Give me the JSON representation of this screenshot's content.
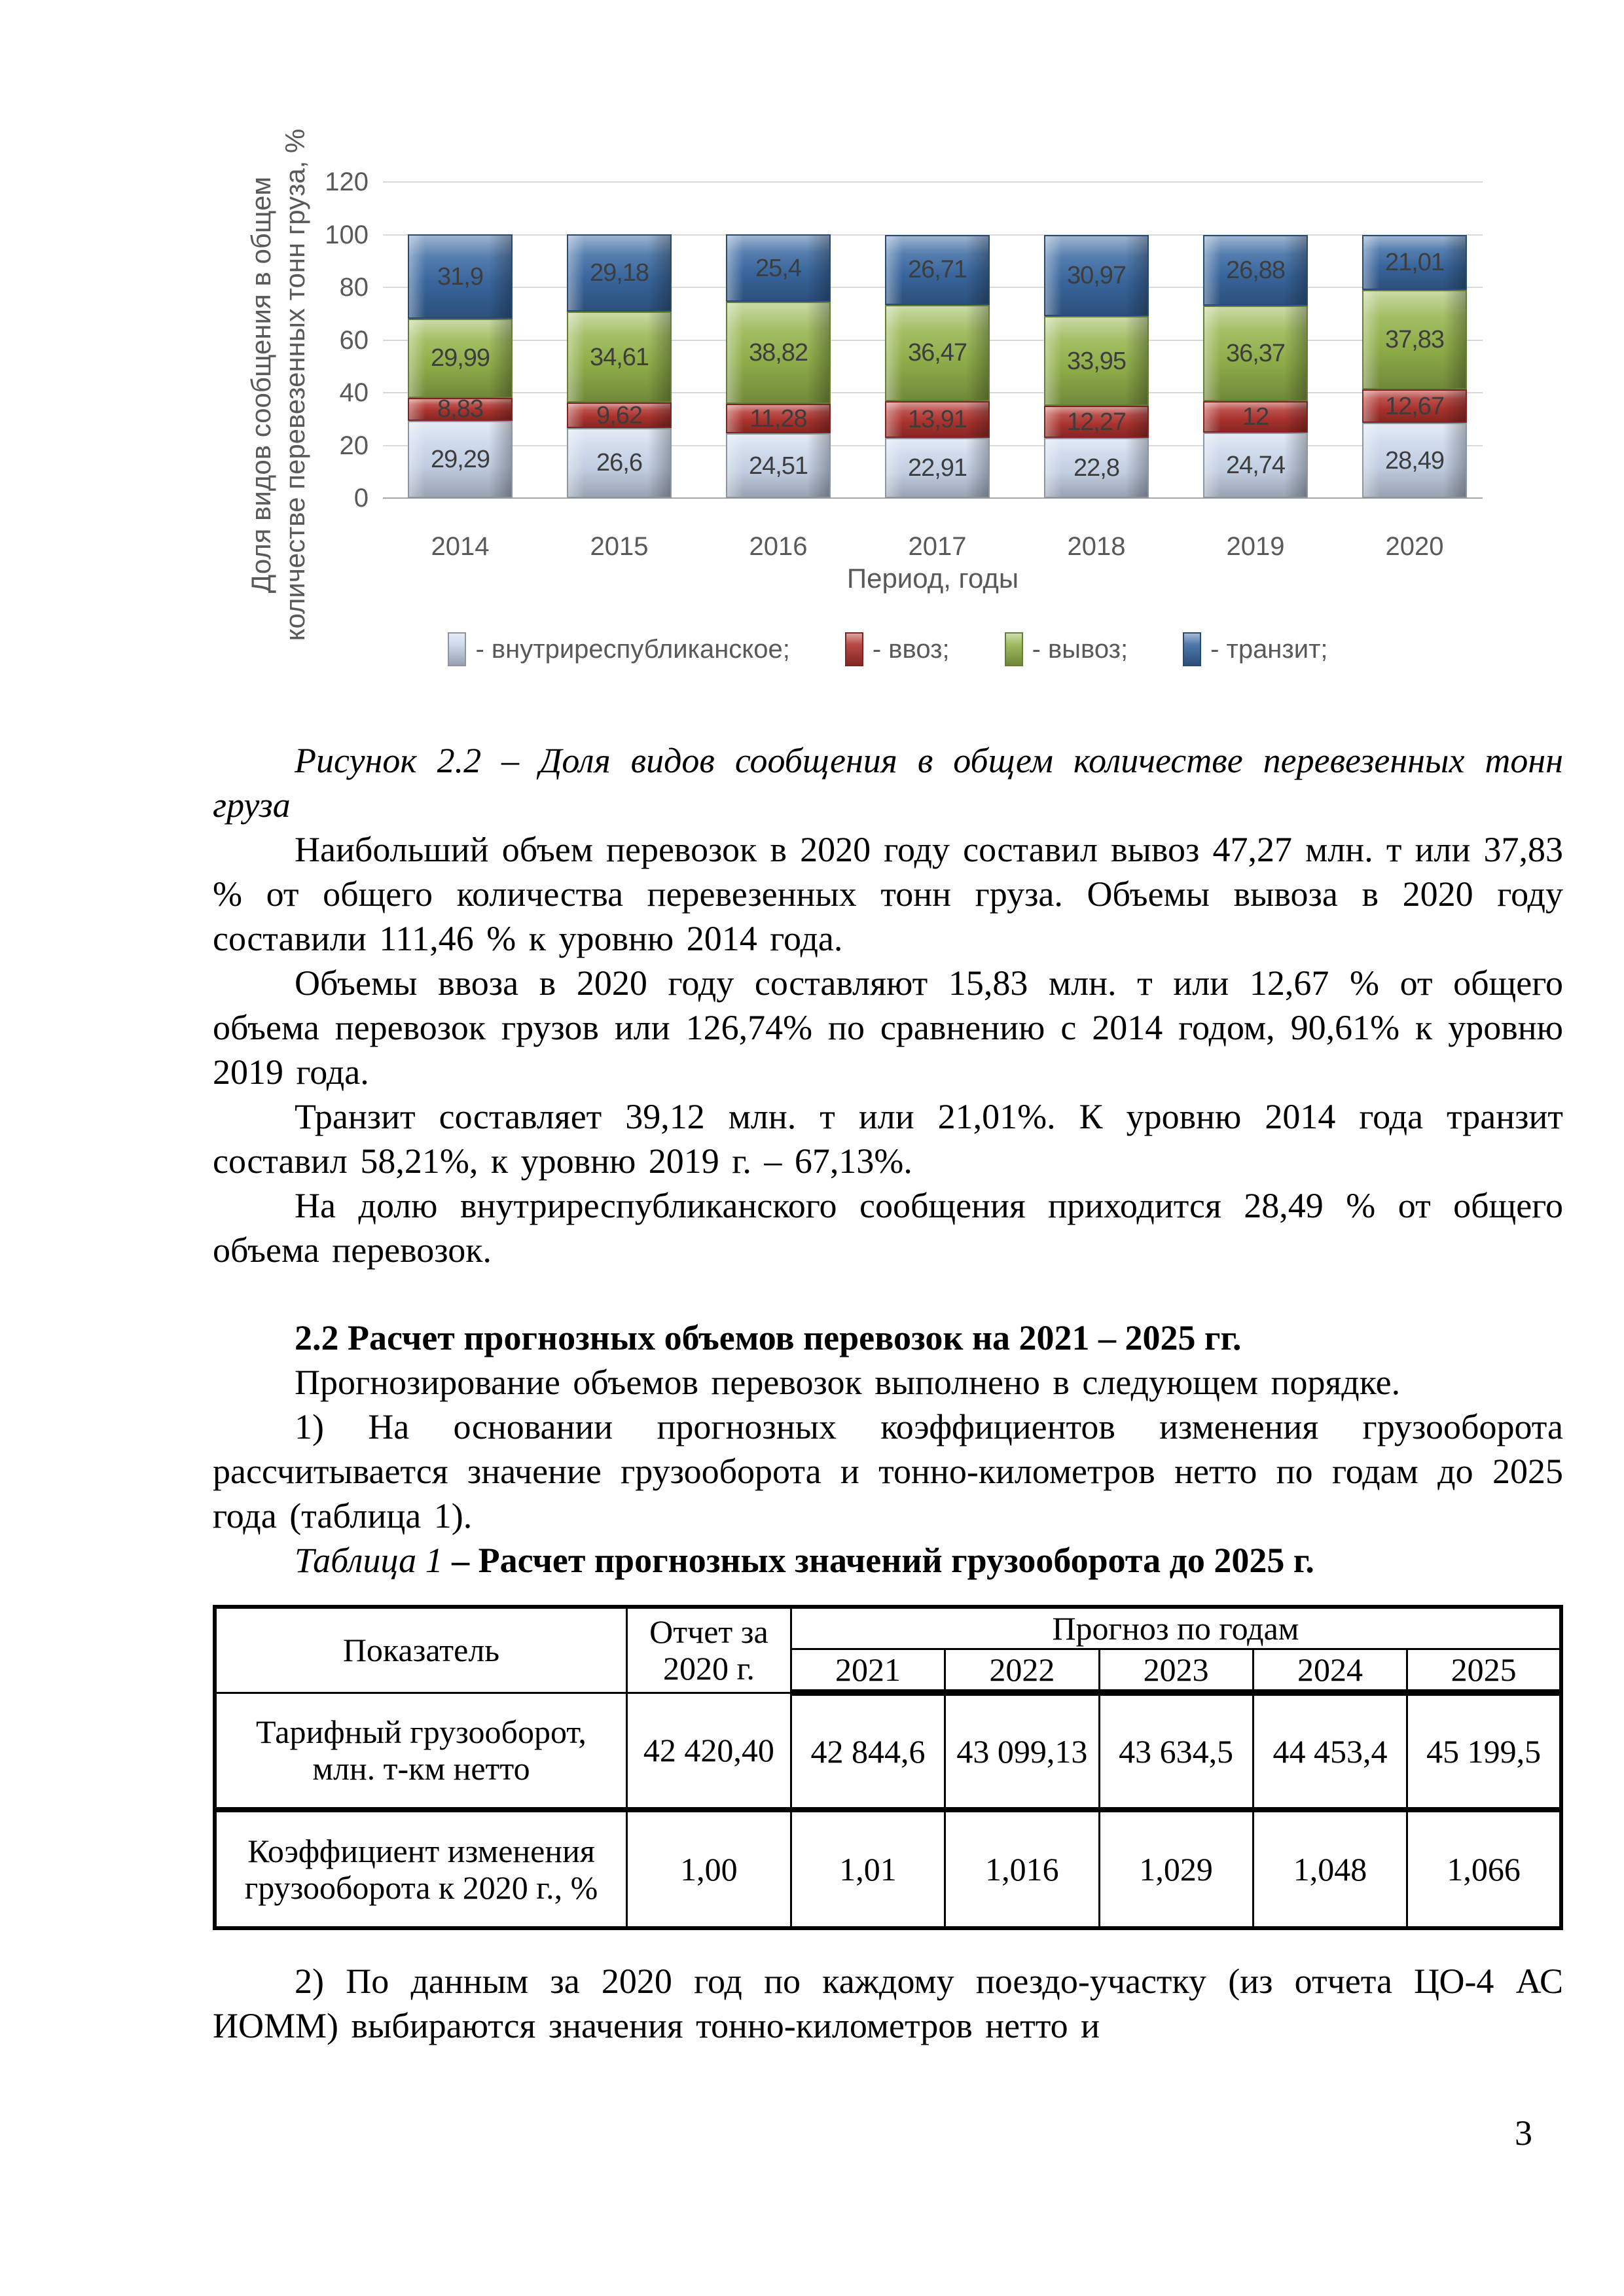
{
  "page_number": "3",
  "chart_data": {
    "type": "bar",
    "stacked": true,
    "categories": [
      "2014",
      "2015",
      "2016",
      "2017",
      "2018",
      "2019",
      "2020"
    ],
    "series": [
      {
        "name": "внутриреспубликанское",
        "color": "#c9d6ea",
        "values": [
          29.29,
          26.6,
          24.51,
          22.91,
          22.8,
          24.74,
          28.49
        ],
        "labels": [
          "29,29",
          "26,6",
          "24,51",
          "22,91",
          "22,8",
          "24,74",
          "28,49"
        ]
      },
      {
        "name": "ввоз",
        "color": "#b0342f",
        "values": [
          8.83,
          9.62,
          11.28,
          13.91,
          12.27,
          12,
          12.67
        ],
        "labels": [
          "8,83",
          "9,62",
          "11,28",
          "13,91",
          "12,27",
          "12",
          "12,67"
        ]
      },
      {
        "name": "вывоз",
        "color": "#94b44c",
        "values": [
          29.99,
          34.61,
          38.82,
          36.47,
          33.95,
          36.37,
          37.83
        ],
        "labels": [
          "29,99",
          "34,61",
          "38,82",
          "36,47",
          "33,95",
          "36,37",
          "37,83"
        ]
      },
      {
        "name": "транзит",
        "color": "#3a69a2",
        "values": [
          31.9,
          29.18,
          25.4,
          26.71,
          30.97,
          26.88,
          21.01
        ],
        "labels": [
          "31,9",
          "29,18",
          "25,4",
          "26,71",
          "30,97",
          "26,88",
          "21,01"
        ]
      }
    ],
    "legend": [
      "- внутриреспубликанское;",
      "- ввоз;",
      "- вывоз;",
      "- транзит;"
    ],
    "legend_position": "bottom",
    "grid": true,
    "ylim": [
      0,
      120
    ],
    "y_ticks": [
      0,
      20,
      40,
      60,
      80,
      100,
      120
    ],
    "xlabel": "Период, годы",
    "ylabel": "Доля видов сообщения в общем количестве перевезенных тонн груза, %",
    "ylabel_lines": [
      "Доля видов сообщения в общем",
      "количестве перевезенных тонн груза, %"
    ]
  },
  "figure_caption": "Рисунок 2.2 – Доля видов сообщения в общем количестве перевезенных тонн груза",
  "paragraphs": {
    "p1": "Наибольший объем перевозок в 2020 году составил вывоз 47,27 млн. т или 37,83 % от общего количества перевезенных тонн груза. Объемы вывоза в 2020 году составили 111,46 % к уровню 2014 года.",
    "p2": "Объемы ввоза в 2020 году составляют 15,83 млн. т или 12,67 % от общего объема перевозок грузов или 126,74% по сравнению с 2014 годом, 90,61% к уровню 2019 года.",
    "p3": "Транзит составляет 39,12 млн. т или 21,01%. К уровню 2014 года транзит составил 58,21%, к уровню 2019 г. – 67,13%.",
    "p4": "На долю внутриреспубликанского сообщения приходится 28,49 % от общего объема перевозок.",
    "p5": "Прогнозирование объемов перевозок выполнено в следующем порядке.",
    "p6": "1) На основании прогнозных коэффициентов изменения грузооборота рассчитывается значение грузооборота и тонно-километров нетто по годам до 2025 года (таблица 1).",
    "p7": "2) По данным за 2020 год по каждому поездо-участку (из отчета ЦО-4 АС ИОММ) выбираются значения тонно-километров нетто и"
  },
  "section_heading": "2.2 Расчет прогнозных объемов перевозок на 2021 – 2025 гг.",
  "table": {
    "caption_label": "Таблица 1",
    "caption_title": " – Расчет прогнозных значений грузооборота до 2025 г.",
    "header": {
      "indicator": "Показатель",
      "report": "Отчет за 2020 г.",
      "forecast": "Прогноз по годам",
      "years": [
        "2021",
        "2022",
        "2023",
        "2024",
        "2025"
      ]
    },
    "rows": [
      {
        "label": "Тарифный грузооборот, млн. т-км нетто",
        "report": "42 420,40",
        "values": [
          "42 844,6",
          "43 099,13",
          "43 634,5",
          "44 453,4",
          "45 199,5"
        ]
      },
      {
        "label": "Коэффициент изменения грузооборота к 2020 г., %",
        "report": "1,00",
        "values": [
          "1,01",
          "1,016",
          "1,029",
          "1,048",
          "1,066"
        ]
      }
    ]
  }
}
